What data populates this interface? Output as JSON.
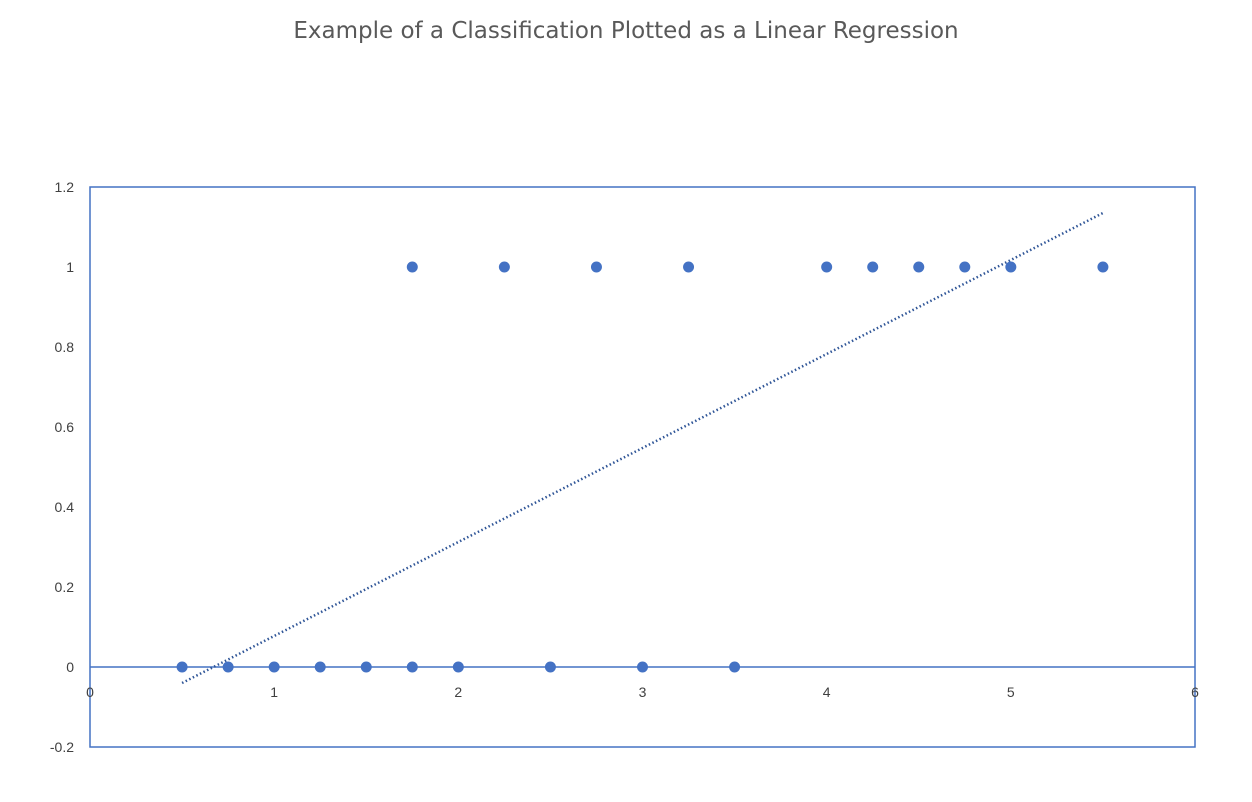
{
  "chart_data": {
    "type": "scatter",
    "title": "Example of  a Classification Plotted as a Linear Regression",
    "xlabel": "",
    "ylabel": "",
    "xlim": [
      0,
      6
    ],
    "ylim": [
      -0.2,
      1.2
    ],
    "x_ticks": [
      "0",
      "1",
      "2",
      "3",
      "4",
      "5",
      "6"
    ],
    "y_ticks": [
      "-0.2",
      "0",
      "0.2",
      "0.4",
      "0.6",
      "0.8",
      "1",
      "1.2"
    ],
    "grid": false,
    "legend": "none",
    "series": [
      {
        "points": [
          [
            0.5,
            0
          ],
          [
            0.75,
            0
          ],
          [
            1.0,
            0
          ],
          [
            1.25,
            0
          ],
          [
            1.5,
            0
          ],
          [
            1.75,
            0
          ],
          [
            2.0,
            0
          ],
          [
            2.5,
            0
          ],
          [
            3.0,
            0
          ],
          [
            3.5,
            0
          ],
          [
            1.75,
            1
          ],
          [
            2.25,
            1
          ],
          [
            2.75,
            1
          ],
          [
            3.25,
            1
          ],
          [
            4.0,
            1
          ],
          [
            4.25,
            1
          ],
          [
            4.5,
            1
          ],
          [
            4.75,
            1
          ],
          [
            5.0,
            1
          ],
          [
            5.5,
            1
          ]
        ],
        "color": "#4472C4"
      }
    ],
    "trendline": {
      "type": "linear",
      "style": "dotted",
      "x_range": [
        0.5,
        5.5
      ],
      "y_range": [
        -0.04,
        1.135
      ],
      "color": "#2F5597"
    }
  }
}
